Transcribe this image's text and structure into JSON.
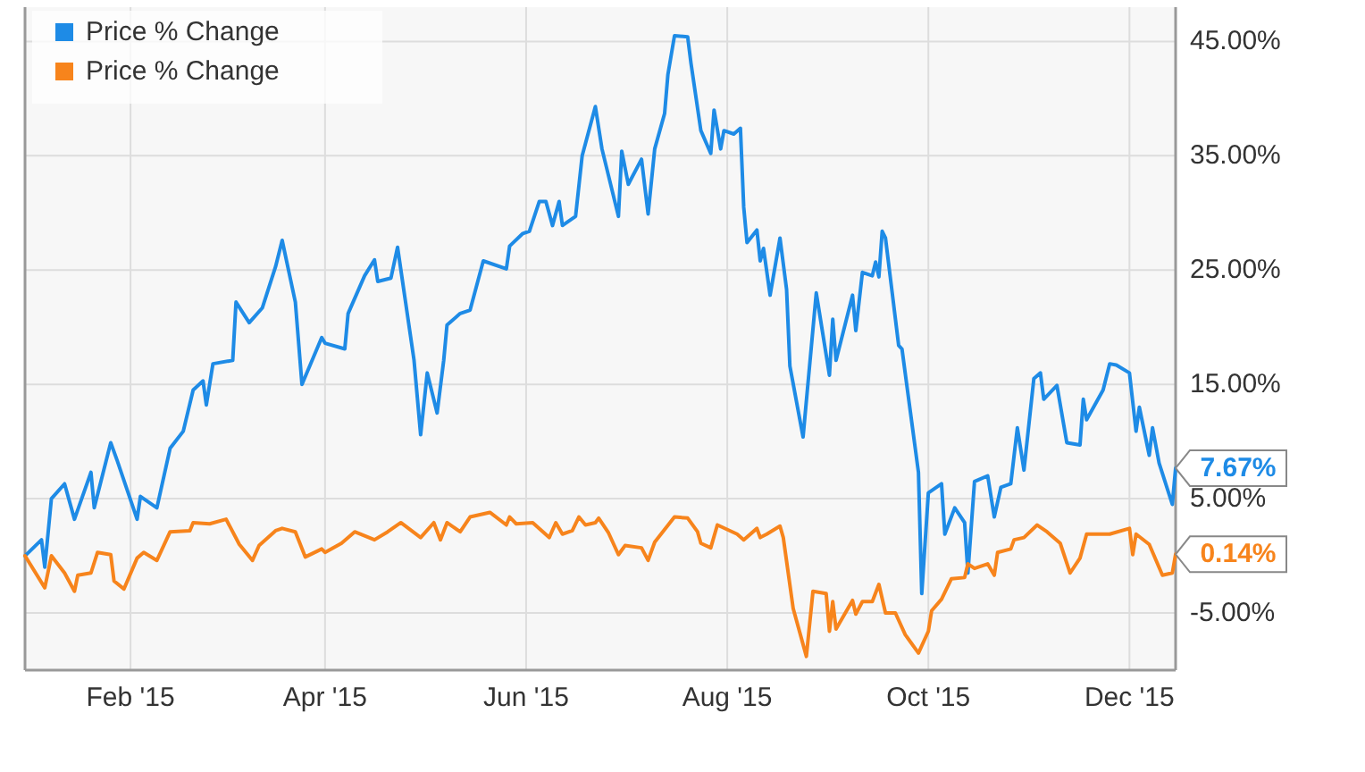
{
  "chart_data": {
    "type": "line",
    "legend": "top left",
    "grid": true,
    "marker": "none",
    "line_style": "solid",
    "xlim": [
      "2014-12-31",
      "2015-12-15"
    ],
    "ylim": [
      -10,
      48
    ],
    "xticks": [
      {
        "value": "2015-02-01",
        "label": "Feb '15"
      },
      {
        "value": "2015-04-01",
        "label": "Apr '15"
      },
      {
        "value": "2015-06-01",
        "label": "Jun '15"
      },
      {
        "value": "2015-08-01",
        "label": "Aug '15"
      },
      {
        "value": "2015-10-01",
        "label": "Oct '15"
      },
      {
        "value": "2015-12-01",
        "label": "Dec '15"
      }
    ],
    "yticks": [
      {
        "value": -5,
        "label": "-5.00%"
      },
      {
        "value": 5,
        "label": "5.00%"
      },
      {
        "value": 15,
        "label": "15.00%"
      },
      {
        "value": 25,
        "label": "25.00%"
      },
      {
        "value": 35,
        "label": "35.00%"
      },
      {
        "value": 45,
        "label": "45.00%"
      }
    ],
    "annotations": [
      {
        "text": "7.67%",
        "x": "2015-12-15",
        "y": 7.67
      },
      {
        "text": "0.14%",
        "x": "2015-12-15",
        "y": 0.14
      }
    ],
    "series": [
      {
        "name": "Price % Change",
        "color": "#1e8be6",
        "x": [
          "2014-12-31",
          "2015-01-05",
          "2015-01-06",
          "2015-01-08",
          "2015-01-12",
          "2015-01-15",
          "2015-01-20",
          "2015-01-21",
          "2015-01-26",
          "2015-01-28",
          "2015-02-03",
          "2015-02-04",
          "2015-02-09",
          "2015-02-13",
          "2015-02-17",
          "2015-02-20",
          "2015-02-23",
          "2015-02-24",
          "2015-02-26",
          "2015-03-04",
          "2015-03-05",
          "2015-03-09",
          "2015-03-13",
          "2015-03-17",
          "2015-03-19",
          "2015-03-23",
          "2015-03-25",
          "2015-03-31",
          "2015-04-01",
          "2015-04-07",
          "2015-04-08",
          "2015-04-13",
          "2015-04-16",
          "2015-04-17",
          "2015-04-21",
          "2015-04-23",
          "2015-04-28",
          "2015-04-30",
          "2015-05-02",
          "2015-05-05",
          "2015-05-07",
          "2015-05-08",
          "2015-05-12",
          "2015-05-15",
          "2015-05-19",
          "2015-05-26",
          "2015-05-27",
          "2015-05-31",
          "2015-06-02",
          "2015-06-05",
          "2015-06-07",
          "2015-06-09",
          "2015-06-11",
          "2015-06-12",
          "2015-06-16",
          "2015-06-18",
          "2015-06-22",
          "2015-06-24",
          "2015-06-29",
          "2015-06-30",
          "2015-07-02",
          "2015-07-06",
          "2015-07-08",
          "2015-07-10",
          "2015-07-13",
          "2015-07-14",
          "2015-07-16",
          "2015-07-20",
          "2015-07-21",
          "2015-07-24",
          "2015-07-27",
          "2015-07-28",
          "2015-07-30",
          "2015-07-31",
          "2015-08-03",
          "2015-08-05",
          "2015-08-06",
          "2015-08-07",
          "2015-08-10",
          "2015-08-11",
          "2015-08-12",
          "2015-08-14",
          "2015-08-17",
          "2015-08-19",
          "2015-08-20",
          "2015-08-24",
          "2015-08-28",
          "2015-09-01",
          "2015-09-02",
          "2015-09-03",
          "2015-09-08",
          "2015-09-09",
          "2015-09-11",
          "2015-09-14",
          "2015-09-15",
          "2015-09-16",
          "2015-09-17",
          "2015-09-18",
          "2015-09-22",
          "2015-09-23",
          "2015-09-28",
          "2015-09-29",
          "2015-10-01",
          "2015-10-05",
          "2015-10-06",
          "2015-10-09",
          "2015-10-12",
          "2015-10-13",
          "2015-10-15",
          "2015-10-19",
          "2015-10-21",
          "2015-10-23",
          "2015-10-26",
          "2015-10-28",
          "2015-10-30",
          "2015-11-02",
          "2015-11-04",
          "2015-11-05",
          "2015-11-09",
          "2015-11-12",
          "2015-11-16",
          "2015-11-17",
          "2015-11-18",
          "2015-11-23",
          "2015-11-25",
          "2015-11-27",
          "2015-12-01",
          "2015-12-03",
          "2015-12-04",
          "2015-12-07",
          "2015-12-08",
          "2015-12-10",
          "2015-12-14",
          "2015-12-15"
        ],
        "values": [
          0,
          1.4,
          -1,
          5,
          6.3,
          3.2,
          7.3,
          4.2,
          9.9,
          8.3,
          3.2,
          5.2,
          4.2,
          9.4,
          10.9,
          14.5,
          15.3,
          13.2,
          16.8,
          17.1,
          22.2,
          20.4,
          21.7,
          25.3,
          27.6,
          22.2,
          15,
          19.1,
          18.6,
          18.1,
          21.2,
          24.5,
          25.9,
          24,
          24.3,
          27,
          17.1,
          10.6,
          16,
          12.5,
          17.1,
          20.2,
          21.2,
          21.5,
          25.8,
          25.1,
          27.1,
          28.2,
          28.4,
          31,
          31,
          28.9,
          31,
          28.9,
          29.7,
          35,
          39.3,
          35.6,
          29.7,
          35.4,
          32.5,
          34.7,
          29.9,
          35.6,
          38.7,
          42.1,
          45.5,
          45.4,
          43.1,
          37.2,
          35.2,
          39,
          35.6,
          37.2,
          36.9,
          37.4,
          30.5,
          27.4,
          28.5,
          25.8,
          26.9,
          22.8,
          27.8,
          23.3,
          16.6,
          10.4,
          23,
          15.8,
          20.7,
          17.1,
          22.8,
          19.7,
          24.8,
          24.5,
          25.7,
          24.4,
          28.4,
          27.8,
          18.4,
          18.1,
          7.3,
          -3.3,
          5.5,
          6.3,
          1.9,
          4.2,
          2.9,
          -1.5,
          6.5,
          7,
          3.4,
          6,
          6.3,
          11.2,
          7.5,
          15.5,
          16,
          13.7,
          14.9,
          9.9,
          9.7,
          13.7,
          11.9,
          14.5,
          16.8,
          16.7,
          16,
          10.9,
          13,
          8.8,
          11.2,
          8.1,
          4.5,
          7.67
        ]
      },
      {
        "name": "Price % Change",
        "color": "#f7841c",
        "x": [
          "2014-12-31",
          "2015-01-06",
          "2015-01-08",
          "2015-01-12",
          "2015-01-15",
          "2015-01-16",
          "2015-01-20",
          "2015-01-22",
          "2015-01-26",
          "2015-01-27",
          "2015-01-30",
          "2015-02-03",
          "2015-02-05",
          "2015-02-09",
          "2015-02-13",
          "2015-02-19",
          "2015-02-20",
          "2015-02-25",
          "2015-03-02",
          "2015-03-06",
          "2015-03-10",
          "2015-03-12",
          "2015-03-17",
          "2015-03-19",
          "2015-03-23",
          "2015-03-26",
          "2015-03-31",
          "2015-04-01",
          "2015-04-06",
          "2015-04-10",
          "2015-04-16",
          "2015-04-20",
          "2015-04-24",
          "2015-04-30",
          "2015-05-04",
          "2015-05-06",
          "2015-05-08",
          "2015-05-12",
          "2015-05-15",
          "2015-05-21",
          "2015-05-26",
          "2015-05-27",
          "2015-05-29",
          "2015-06-03",
          "2015-06-08",
          "2015-06-10",
          "2015-06-12",
          "2015-06-15",
          "2015-06-17",
          "2015-06-19",
          "2015-06-22",
          "2015-06-23",
          "2015-06-26",
          "2015-06-29",
          "2015-07-01",
          "2015-07-06",
          "2015-07-08",
          "2015-07-10",
          "2015-07-16",
          "2015-07-20",
          "2015-07-23",
          "2015-07-24",
          "2015-07-27",
          "2015-07-29",
          "2015-08-04",
          "2015-08-06",
          "2015-08-10",
          "2015-08-11",
          "2015-08-13",
          "2015-08-17",
          "2015-08-18",
          "2015-08-21",
          "2015-08-25",
          "2015-08-27",
          "2015-08-31",
          "2015-09-01",
          "2015-09-02",
          "2015-09-03",
          "2015-09-08",
          "2015-09-09",
          "2015-09-11",
          "2015-09-14",
          "2015-09-16",
          "2015-09-18",
          "2015-09-21",
          "2015-09-24",
          "2015-09-28",
          "2015-10-01",
          "2015-10-02",
          "2015-10-05",
          "2015-10-08",
          "2015-10-12",
          "2015-10-13",
          "2015-10-15",
          "2015-10-19",
          "2015-10-21",
          "2015-10-22",
          "2015-10-26",
          "2015-10-27",
          "2015-10-30",
          "2015-11-03",
          "2015-11-06",
          "2015-11-10",
          "2015-11-13",
          "2015-11-16",
          "2015-11-18",
          "2015-11-25",
          "2015-12-01",
          "2015-12-02",
          "2015-12-03",
          "2015-12-07",
          "2015-12-11",
          "2015-12-14",
          "2015-12-15"
        ],
        "values": [
          0,
          -2.8,
          0,
          -1.5,
          -3.1,
          -1.7,
          -1.5,
          0.3,
          0.1,
          -2.2,
          -2.9,
          -0.2,
          0.3,
          -0.4,
          2.1,
          2.2,
          2.9,
          2.8,
          3.2,
          1,
          -0.4,
          0.9,
          2.2,
          2.4,
          2.1,
          -0.1,
          0.6,
          0.3,
          1.1,
          2.1,
          1.4,
          2.1,
          2.9,
          1.6,
          2.9,
          1.4,
          2.9,
          2.1,
          3.4,
          3.8,
          2.7,
          3.4,
          2.8,
          2.9,
          1.6,
          2.9,
          1.9,
          2.2,
          3.4,
          2.7,
          2.9,
          3.3,
          2,
          0.1,
          0.9,
          0.7,
          -0.4,
          1.2,
          3.4,
          3.3,
          2.1,
          1.1,
          0.7,
          2.7,
          1.9,
          1.4,
          2.4,
          1.6,
          1.9,
          2.6,
          1.6,
          -4.6,
          -8.8,
          -3.1,
          -3.3,
          -6.6,
          -4,
          -6.4,
          -3.9,
          -5.1,
          -4,
          -4,
          -2.5,
          -5,
          -5,
          -6.9,
          -8.5,
          -6.6,
          -4.8,
          -3.8,
          -2,
          -1.9,
          -0.7,
          -1.1,
          -0.7,
          -1.7,
          0.3,
          0.6,
          1.4,
          1.6,
          2.7,
          2.1,
          1.1,
          -1.5,
          -0.2,
          1.9,
          1.9,
          2.4,
          0.1,
          1.9,
          1,
          -1.7,
          -1.5,
          0.14
        ]
      }
    ]
  }
}
